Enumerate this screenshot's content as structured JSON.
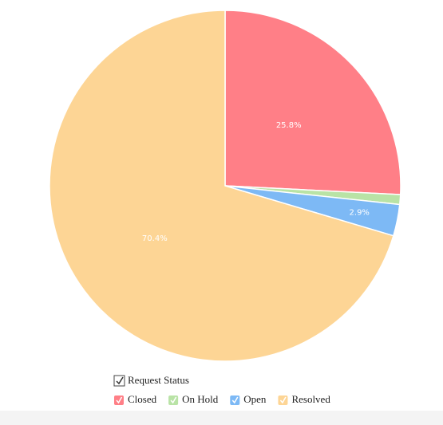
{
  "chart_data": {
    "type": "pie",
    "legend_title": "Request Status",
    "categories": [
      "Closed",
      "On Hold",
      "Open",
      "Resolved"
    ],
    "values": [
      25.8,
      0.9,
      2.9,
      70.4
    ],
    "value_labels": [
      "25.8%",
      null,
      "2.9%",
      "70.4%"
    ],
    "colors": [
      "#ff7f87",
      "#b9e3a6",
      "#7db9f5",
      "#fdd595"
    ],
    "legend": "bottom"
  }
}
